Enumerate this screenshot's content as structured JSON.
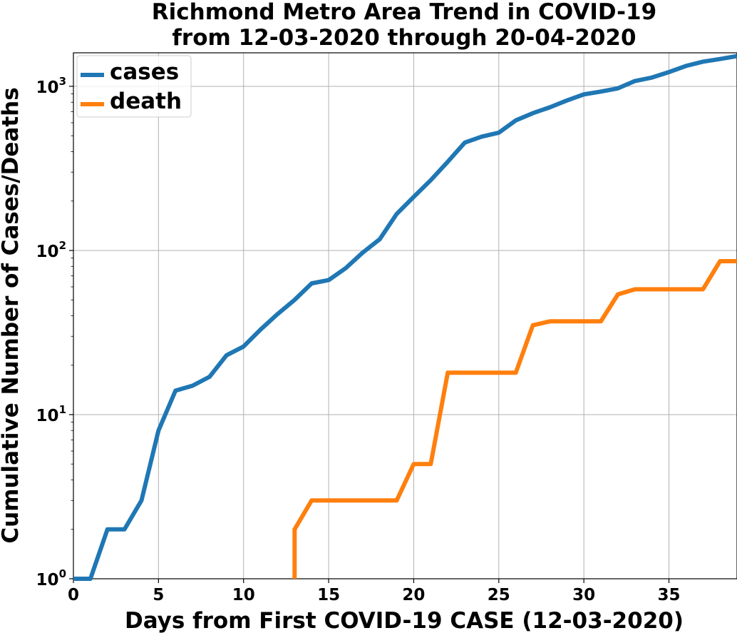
{
  "chart_data": {
    "type": "line",
    "title_lines": [
      "Richmond Metro Area Trend in COVID-19",
      "from 12-03-2020 through 20-04-2020"
    ],
    "xlabel": "Days from First COVID-19 CASE (12-03-2020)",
    "ylabel": "Cumulative Number of Cases/Deaths",
    "xlim": [
      0,
      39
    ],
    "ylim": [
      1,
      1600
    ],
    "yscale": "log",
    "grid": true,
    "legend_position": "top-left",
    "x_ticks": [
      "0",
      "5",
      "10",
      "15",
      "20",
      "25",
      "30",
      "35"
    ],
    "y_ticks": [
      {
        "base": "10",
        "exp": "0",
        "value": 1
      },
      {
        "base": "10",
        "exp": "1",
        "value": 10
      },
      {
        "base": "10",
        "exp": "2",
        "value": 100
      },
      {
        "base": "10",
        "exp": "3",
        "value": 1000
      }
    ],
    "series": [
      {
        "name": "cases",
        "color": "#1f77b4",
        "x": [
          0,
          1,
          2,
          3,
          4,
          5,
          6,
          7,
          8,
          9,
          10,
          11,
          12,
          13,
          14,
          15,
          16,
          17,
          18,
          19,
          20,
          21,
          22,
          23,
          24,
          25,
          26,
          27,
          28,
          29,
          30,
          31,
          32,
          33,
          34,
          35,
          36,
          37,
          38,
          39
        ],
        "values": [
          1,
          1,
          2,
          2,
          3,
          8,
          14,
          15,
          17,
          23,
          26,
          33,
          41,
          50,
          63,
          66,
          78,
          97,
          117,
          167,
          212,
          268,
          347,
          454,
          494,
          522,
          620,
          686,
          745,
          820,
          893,
          929,
          972,
          1077,
          1131,
          1221,
          1331,
          1413,
          1467,
          1528
        ]
      },
      {
        "name": "death",
        "color": "#ff7f0e",
        "x": [
          13,
          13,
          14,
          15,
          16,
          17,
          18,
          19,
          20,
          21,
          22,
          23,
          24,
          25,
          26,
          27,
          28,
          29,
          30,
          31,
          32,
          33,
          34,
          35,
          36,
          37,
          38,
          39
        ],
        "values": [
          1,
          2,
          3,
          3,
          3,
          3,
          3,
          3,
          5,
          5,
          18,
          18,
          18,
          18,
          18,
          35,
          37,
          37,
          37,
          37,
          54,
          58,
          58,
          58,
          58,
          58,
          86,
          86
        ]
      }
    ]
  }
}
